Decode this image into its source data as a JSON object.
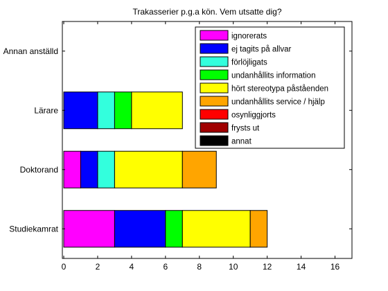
{
  "chart_data": {
    "type": "bar",
    "orientation": "horizontal",
    "stacked": true,
    "title": "Trakasserier p.g.a kön. Vem utsatte dig?",
    "xlabel": "",
    "ylabel": "",
    "xlim": [
      0,
      17
    ],
    "xticks": [
      0,
      2,
      4,
      6,
      8,
      10,
      12,
      14,
      16
    ],
    "categories": [
      "Studiekamrat",
      "Doktorand",
      "Lärare",
      "Annan anställd"
    ],
    "grid": false,
    "legend_position": "top-right",
    "series": [
      {
        "name": "ignorerats",
        "color": "#ff00ff",
        "values": [
          3,
          1,
          0,
          0
        ]
      },
      {
        "name": "ej tagits på allvar",
        "color": "#0000ff",
        "values": [
          3,
          1,
          2,
          0
        ]
      },
      {
        "name": "förlöjligats",
        "color": "#33ffdd",
        "values": [
          0,
          1,
          1,
          0
        ]
      },
      {
        "name": "undanhållits information",
        "color": "#00ff00",
        "values": [
          1,
          0,
          1,
          0
        ]
      },
      {
        "name": "hört stereotypa påståenden",
        "color": "#ffff00",
        "values": [
          4,
          4,
          3,
          0
        ]
      },
      {
        "name": "undanhållits service / hjälp",
        "color": "#ffa500",
        "values": [
          1,
          2,
          0,
          0
        ]
      },
      {
        "name": "osynliggjorts",
        "color": "#ff0000",
        "values": [
          0,
          0,
          0,
          0
        ]
      },
      {
        "name": "frysts ut",
        "color": "#a00000",
        "values": [
          0,
          0,
          0,
          0
        ]
      },
      {
        "name": "annat",
        "color": "#000000",
        "values": [
          0,
          0,
          0,
          0
        ]
      }
    ]
  }
}
